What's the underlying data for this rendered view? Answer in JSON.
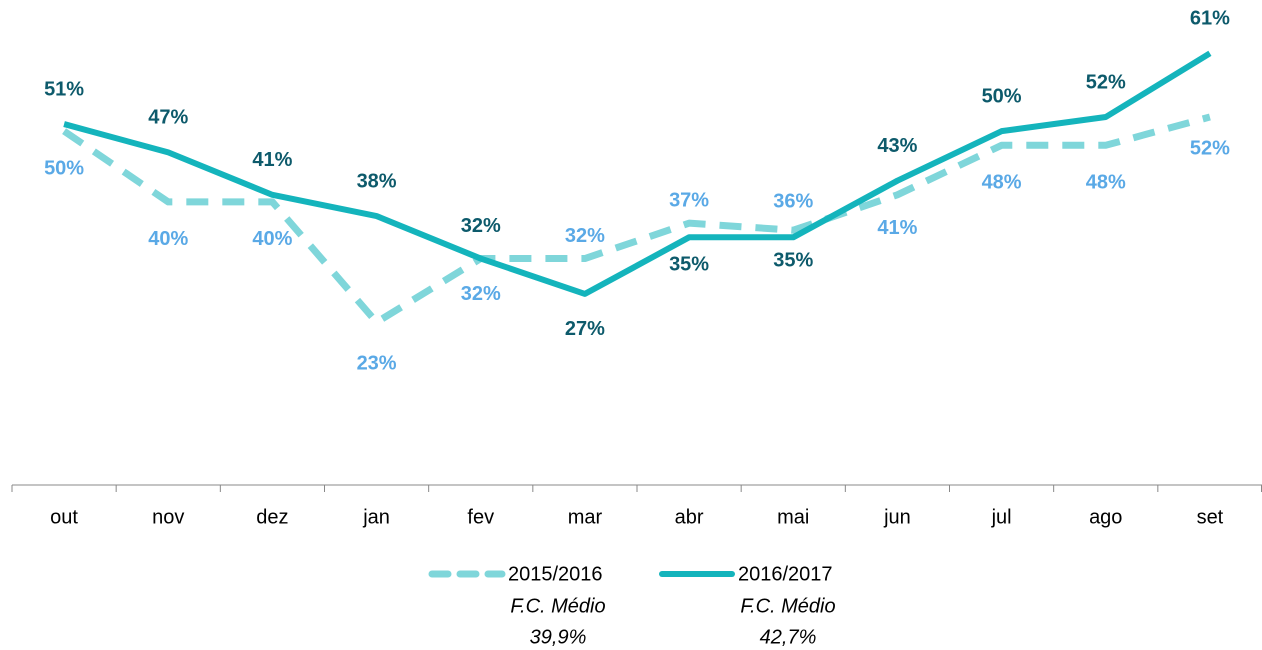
{
  "chart_data": {
    "type": "line",
    "categories": [
      "out",
      "nov",
      "dez",
      "jan",
      "fev",
      "mar",
      "abr",
      "mai",
      "jun",
      "jul",
      "ago",
      "set"
    ],
    "ylim": [
      0,
      65
    ],
    "series": [
      {
        "name": "2015/2016",
        "color": "#7fd6da",
        "label_color": "#5aa9e6",
        "dashed": true,
        "average_title": "F.C. Médio",
        "average": "39,9%",
        "values": [
          50,
          40,
          40,
          23,
          32,
          32,
          37,
          36,
          41,
          48,
          48,
          52
        ],
        "value_labels": [
          "50%",
          "40%",
          "40%",
          "23%",
          "32%",
          "32%",
          "37%",
          "36%",
          "41%",
          "48%",
          "48%",
          "52%"
        ]
      },
      {
        "name": "2016/2017",
        "color": "#14b4bc",
        "label_color": "#0d5a6b",
        "dashed": false,
        "average_title": "F.C. Médio",
        "average": "42,7%",
        "values": [
          51,
          47,
          41,
          38,
          32,
          27,
          35,
          35,
          43,
          50,
          52,
          61
        ],
        "value_labels": [
          "51%",
          "47%",
          "41%",
          "38%",
          "32%",
          "27%",
          "35%",
          "35%",
          "43%",
          "50%",
          "52%",
          "61%"
        ]
      }
    ]
  }
}
